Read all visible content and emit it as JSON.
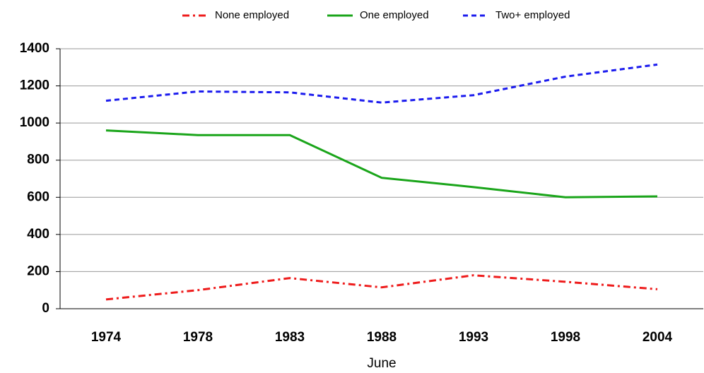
{
  "chart_data": {
    "type": "line",
    "x_label": "June",
    "categories": [
      "1974",
      "1978",
      "1983",
      "1988",
      "1993",
      "1998",
      "2004"
    ],
    "series": [
      {
        "name": "None employed",
        "color": "#ee1c1c",
        "line_style": "dashdot",
        "values": [
          50,
          100,
          165,
          115,
          180,
          145,
          105
        ]
      },
      {
        "name": "One employed",
        "color": "#1aa51a",
        "line_style": "solid",
        "values": [
          960,
          935,
          935,
          705,
          655,
          600,
          605
        ]
      },
      {
        "name": "Two+ employed",
        "color": "#1c1cee",
        "line_style": "dashed",
        "values": [
          1120,
          1170,
          1165,
          1110,
          1150,
          1250,
          1315
        ]
      }
    ],
    "ylim": [
      0,
      1400
    ],
    "yticks": [
      0,
      200,
      400,
      600,
      800,
      1000,
      1200,
      1400
    ],
    "grid": true,
    "legend": "top"
  }
}
